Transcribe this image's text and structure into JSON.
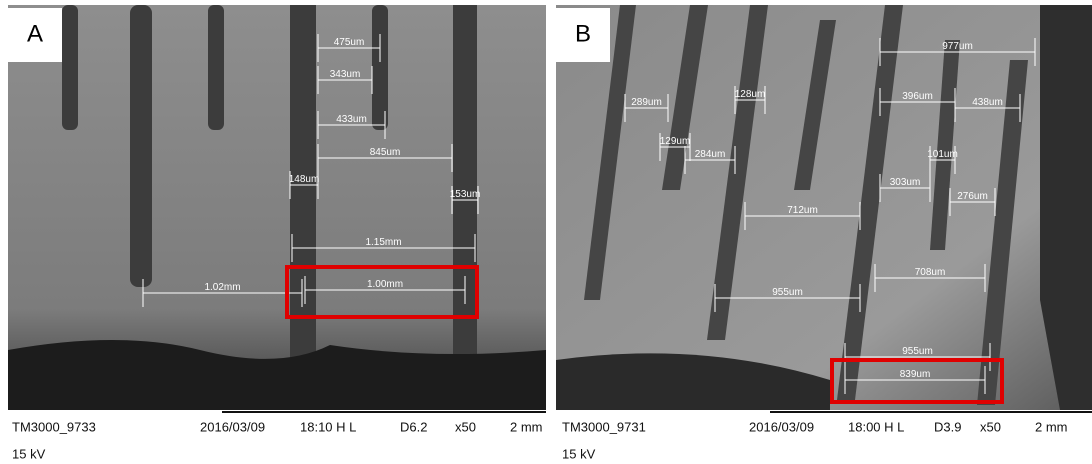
{
  "panels": [
    {
      "label": "A",
      "measurements": [
        "475um",
        "343um",
        "433um",
        "845um",
        "148um",
        "153um",
        "1.15mm",
        "1.02mm",
        "1.00mm"
      ],
      "footer": {
        "id": "TM3000_9733",
        "date": "2016/03/09",
        "time": "18:10 H L",
        "detector": "D6.2",
        "magnification": "x50",
        "scale": "2 mm",
        "voltage": "15 kV"
      }
    },
    {
      "label": "B",
      "measurements": [
        "977um",
        "289um",
        "128um",
        "396um",
        "438um",
        "129um",
        "284um",
        "101um",
        "303um",
        "276um",
        "712um",
        "708um",
        "955um",
        "955um",
        "839um"
      ],
      "footer": {
        "id": "TM3000_9731",
        "date": "2016/03/09",
        "time": "18:00 H L",
        "detector": "D3.9",
        "magnification": "x50",
        "scale": "2 mm",
        "voltage": "15 kV"
      }
    }
  ]
}
